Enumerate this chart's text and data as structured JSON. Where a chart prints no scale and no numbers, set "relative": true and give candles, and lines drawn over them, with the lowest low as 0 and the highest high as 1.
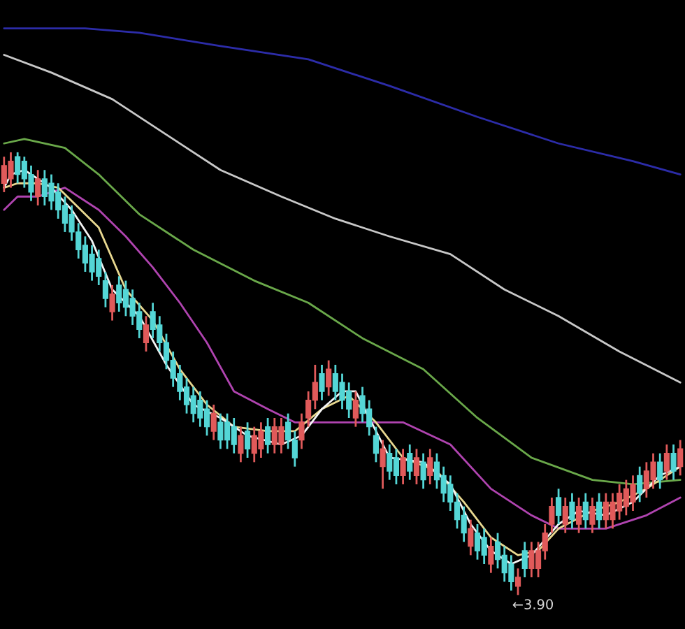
{
  "chart_data": {
    "type": "candlestick",
    "relative": true,
    "categories": [
      null,
      null,
      null,
      null,
      null,
      null,
      null,
      null,
      null,
      null,
      null,
      null,
      null,
      null,
      null,
      null,
      null,
      null,
      null,
      null,
      null,
      null,
      null,
      null,
      null,
      null,
      null,
      null,
      null,
      null,
      null,
      null,
      null,
      null,
      null,
      null,
      null,
      null,
      null,
      null,
      null,
      null,
      null,
      null,
      null,
      null,
      null,
      null,
      null,
      null,
      null,
      null,
      null,
      null,
      null,
      null,
      null,
      null,
      null,
      null,
      null,
      null,
      null,
      null,
      null,
      null,
      null,
      null,
      null,
      null,
      null,
      null,
      null,
      null,
      null,
      null,
      null,
      null,
      null,
      null,
      null,
      null,
      null,
      null,
      null,
      null,
      null,
      null,
      null,
      null,
      null,
      null,
      null,
      null,
      null,
      null,
      null,
      null,
      null,
      null,
      null
    ],
    "ohlc": [
      [
        0.93,
        0.99,
        0.91,
        0.97
      ],
      [
        0.94,
        1.0,
        0.92,
        0.98
      ],
      [
        0.99,
        1.0,
        0.93,
        0.95
      ],
      [
        0.98,
        0.99,
        0.92,
        0.94
      ],
      [
        0.95,
        0.97,
        0.89,
        0.91
      ],
      [
        0.9,
        0.96,
        0.88,
        0.94
      ],
      [
        0.94,
        0.96,
        0.88,
        0.9
      ],
      [
        0.93,
        0.95,
        0.87,
        0.89
      ],
      [
        0.91,
        0.93,
        0.85,
        0.87
      ],
      [
        0.88,
        0.9,
        0.82,
        0.84
      ],
      [
        0.86,
        0.88,
        0.8,
        0.82
      ],
      [
        0.82,
        0.84,
        0.76,
        0.78
      ],
      [
        0.79,
        0.81,
        0.73,
        0.75
      ],
      [
        0.77,
        0.79,
        0.71,
        0.73
      ],
      [
        0.76,
        0.78,
        0.7,
        0.72
      ],
      [
        0.71,
        0.73,
        0.65,
        0.67
      ],
      [
        0.64,
        0.7,
        0.62,
        0.68
      ],
      [
        0.7,
        0.72,
        0.64,
        0.66
      ],
      [
        0.69,
        0.71,
        0.63,
        0.65
      ],
      [
        0.67,
        0.69,
        0.61,
        0.63
      ],
      [
        0.64,
        0.66,
        0.58,
        0.6
      ],
      [
        0.57,
        0.63,
        0.55,
        0.61
      ],
      [
        0.64,
        0.66,
        0.58,
        0.6
      ],
      [
        0.61,
        0.63,
        0.55,
        0.57
      ],
      [
        0.57,
        0.59,
        0.51,
        0.53
      ],
      [
        0.53,
        0.55,
        0.47,
        0.49
      ],
      [
        0.5,
        0.52,
        0.44,
        0.46
      ],
      [
        0.47,
        0.49,
        0.41,
        0.43
      ],
      [
        0.45,
        0.47,
        0.39,
        0.41
      ],
      [
        0.44,
        0.46,
        0.38,
        0.4
      ],
      [
        0.42,
        0.44,
        0.36,
        0.38
      ],
      [
        0.37,
        0.43,
        0.35,
        0.41
      ],
      [
        0.39,
        0.41,
        0.33,
        0.35
      ],
      [
        0.39,
        0.41,
        0.33,
        0.35
      ],
      [
        0.38,
        0.4,
        0.32,
        0.34
      ],
      [
        0.32,
        0.38,
        0.3,
        0.36
      ],
      [
        0.37,
        0.39,
        0.31,
        0.33
      ],
      [
        0.32,
        0.38,
        0.3,
        0.36
      ],
      [
        0.33,
        0.39,
        0.31,
        0.37
      ],
      [
        0.38,
        0.4,
        0.32,
        0.34
      ],
      [
        0.34,
        0.4,
        0.32,
        0.38
      ],
      [
        0.34,
        0.4,
        0.32,
        0.38
      ],
      [
        0.39,
        0.41,
        0.33,
        0.35
      ],
      [
        0.35,
        0.37,
        0.29,
        0.31
      ],
      [
        0.35,
        0.41,
        0.33,
        0.39
      ],
      [
        0.4,
        0.46,
        0.38,
        0.44
      ],
      [
        0.44,
        0.52,
        0.42,
        0.48
      ],
      [
        0.5,
        0.52,
        0.44,
        0.46
      ],
      [
        0.47,
        0.53,
        0.45,
        0.51
      ],
      [
        0.5,
        0.52,
        0.44,
        0.46
      ],
      [
        0.48,
        0.5,
        0.42,
        0.44
      ],
      [
        0.46,
        0.48,
        0.4,
        0.42
      ],
      [
        0.4,
        0.46,
        0.38,
        0.44
      ],
      [
        0.45,
        0.47,
        0.39,
        0.41
      ],
      [
        0.42,
        0.44,
        0.36,
        0.38
      ],
      [
        0.36,
        0.38,
        0.3,
        0.32
      ],
      [
        0.29,
        0.35,
        0.24,
        0.33
      ],
      [
        0.32,
        0.34,
        0.26,
        0.28
      ],
      [
        0.31,
        0.33,
        0.25,
        0.27
      ],
      [
        0.27,
        0.33,
        0.25,
        0.31
      ],
      [
        0.32,
        0.34,
        0.26,
        0.28
      ],
      [
        0.27,
        0.33,
        0.25,
        0.31
      ],
      [
        0.3,
        0.32,
        0.24,
        0.26
      ],
      [
        0.27,
        0.33,
        0.25,
        0.31
      ],
      [
        0.3,
        0.32,
        0.24,
        0.26
      ],
      [
        0.27,
        0.29,
        0.21,
        0.23
      ],
      [
        0.25,
        0.27,
        0.19,
        0.21
      ],
      [
        0.21,
        0.23,
        0.15,
        0.17
      ],
      [
        0.18,
        0.2,
        0.12,
        0.14
      ],
      [
        0.11,
        0.17,
        0.09,
        0.15
      ],
      [
        0.14,
        0.16,
        0.08,
        0.1
      ],
      [
        0.13,
        0.15,
        0.07,
        0.09
      ],
      [
        0.07,
        0.13,
        0.05,
        0.11
      ],
      [
        0.12,
        0.14,
        0.06,
        0.08
      ],
      [
        0.09,
        0.11,
        0.03,
        0.05
      ],
      [
        0.07,
        0.09,
        0.01,
        0.03
      ],
      [
        0.02,
        0.06,
        0.0,
        0.04
      ],
      [
        0.1,
        0.12,
        0.04,
        0.06
      ],
      [
        0.06,
        0.12,
        0.04,
        0.1
      ],
      [
        0.06,
        0.12,
        0.04,
        0.1
      ],
      [
        0.1,
        0.16,
        0.08,
        0.14
      ],
      [
        0.16,
        0.22,
        0.14,
        0.2
      ],
      [
        0.22,
        0.24,
        0.16,
        0.18
      ],
      [
        0.16,
        0.22,
        0.14,
        0.2
      ],
      [
        0.21,
        0.23,
        0.15,
        0.17
      ],
      [
        0.16,
        0.22,
        0.14,
        0.2
      ],
      [
        0.21,
        0.23,
        0.15,
        0.17
      ],
      [
        0.16,
        0.22,
        0.14,
        0.2
      ],
      [
        0.21,
        0.23,
        0.15,
        0.17
      ],
      [
        0.17,
        0.23,
        0.15,
        0.21
      ],
      [
        0.17,
        0.23,
        0.15,
        0.21
      ],
      [
        0.19,
        0.25,
        0.17,
        0.23
      ],
      [
        0.2,
        0.26,
        0.18,
        0.24
      ],
      [
        0.21,
        0.27,
        0.19,
        0.25
      ],
      [
        0.27,
        0.29,
        0.21,
        0.23
      ],
      [
        0.24,
        0.3,
        0.22,
        0.28
      ],
      [
        0.26,
        0.32,
        0.24,
        0.3
      ],
      [
        0.3,
        0.32,
        0.24,
        0.26
      ],
      [
        0.28,
        0.34,
        0.26,
        0.32
      ],
      [
        0.32,
        0.34,
        0.26,
        0.28
      ],
      [
        0.29,
        0.35,
        0.27,
        0.33
      ]
    ],
    "colors": [
      "#e05a5a",
      "#e05a5a",
      "#54d6d6",
      "#54d6d6",
      "#54d6d6",
      "#e05a5a",
      "#54d6d6",
      "#54d6d6",
      "#54d6d6",
      "#54d6d6",
      "#54d6d6",
      "#54d6d6",
      "#54d6d6",
      "#54d6d6",
      "#54d6d6",
      "#54d6d6",
      "#e05a5a",
      "#54d6d6",
      "#54d6d6",
      "#54d6d6",
      "#54d6d6",
      "#e05a5a",
      "#54d6d6",
      "#54d6d6",
      "#54d6d6",
      "#54d6d6",
      "#54d6d6",
      "#54d6d6",
      "#54d6d6",
      "#54d6d6",
      "#54d6d6",
      "#e05a5a",
      "#54d6d6",
      "#54d6d6",
      "#54d6d6",
      "#e05a5a",
      "#54d6d6",
      "#e05a5a",
      "#e05a5a",
      "#54d6d6",
      "#e05a5a",
      "#e05a5a",
      "#54d6d6",
      "#54d6d6",
      "#e05a5a",
      "#e05a5a",
      "#e05a5a",
      "#54d6d6",
      "#e05a5a",
      "#54d6d6",
      "#54d6d6",
      "#54d6d6",
      "#e05a5a",
      "#54d6d6",
      "#54d6d6",
      "#54d6d6",
      "#e05a5a",
      "#54d6d6",
      "#54d6d6",
      "#e05a5a",
      "#54d6d6",
      "#e05a5a",
      "#54d6d6",
      "#e05a5a",
      "#54d6d6",
      "#54d6d6",
      "#54d6d6",
      "#54d6d6",
      "#54d6d6",
      "#e05a5a",
      "#54d6d6",
      "#54d6d6",
      "#e05a5a",
      "#54d6d6",
      "#54d6d6",
      "#54d6d6",
      "#e05a5a",
      "#54d6d6",
      "#e05a5a",
      "#e05a5a",
      "#e05a5a",
      "#e05a5a",
      "#54d6d6",
      "#e05a5a",
      "#54d6d6",
      "#e05a5a",
      "#54d6d6",
      "#e05a5a",
      "#54d6d6",
      "#e05a5a",
      "#e05a5a",
      "#e05a5a",
      "#e05a5a",
      "#e05a5a",
      "#54d6d6",
      "#e05a5a",
      "#e05a5a",
      "#54d6d6",
      "#e05a5a",
      "#54d6d6",
      "#e05a5a"
    ],
    "series": [
      {
        "type": "line",
        "color": "#2c2ca8",
        "values": [
          1.28,
          null,
          null,
          null,
          null,
          null,
          null,
          null,
          null,
          null,
          null,
          null,
          1.28,
          null,
          null,
          null,
          null,
          null,
          null,
          null,
          1.27,
          null,
          null,
          null,
          null,
          null,
          null,
          null,
          null,
          null,
          null,
          null,
          1.24,
          null,
          null,
          null,
          null,
          null,
          null,
          null,
          null,
          null,
          null,
          null,
          null,
          1.21,
          null,
          null,
          null,
          null,
          null,
          null,
          null,
          null,
          null,
          null,
          null,
          1.15,
          null,
          null,
          null,
          null,
          null,
          null,
          null,
          null,
          null,
          null,
          null,
          null,
          1.08,
          null,
          null,
          null,
          null,
          null,
          null,
          null,
          null,
          null,
          null,
          null,
          1.02,
          null,
          null,
          null,
          null,
          null,
          null,
          null,
          null,
          null,
          null,
          0.98,
          null,
          null,
          null,
          null,
          null,
          null,
          0.95
        ]
      },
      {
        "type": "line",
        "color": "#c8c8c8",
        "values": [
          1.22,
          null,
          null,
          null,
          null,
          null,
          null,
          1.18,
          null,
          null,
          null,
          null,
          null,
          null,
          null,
          null,
          1.12,
          null,
          null,
          null,
          null,
          null,
          null,
          null,
          1.04,
          null,
          null,
          null,
          null,
          null,
          null,
          null,
          0.96,
          null,
          null,
          null,
          null,
          null,
          null,
          null,
          null,
          0.9,
          null,
          null,
          null,
          null,
          null,
          null,
          null,
          0.85,
          null,
          null,
          null,
          null,
          null,
          null,
          null,
          0.81,
          null,
          null,
          null,
          null,
          null,
          null,
          null,
          null,
          0.77,
          null,
          null,
          null,
          null,
          null,
          null,
          null,
          0.69,
          null,
          null,
          null,
          null,
          null,
          null,
          null,
          0.63,
          null,
          null,
          null,
          null,
          null,
          null,
          null,
          null,
          0.55,
          null,
          null,
          null,
          null,
          null,
          null,
          null,
          null,
          0.48
        ]
      },
      {
        "type": "line",
        "color": "#6aa84a",
        "values": [
          1.02,
          null,
          null,
          1.03,
          null,
          null,
          null,
          null,
          null,
          1.01,
          null,
          null,
          null,
          null,
          0.95,
          null,
          null,
          null,
          null,
          null,
          0.86,
          null,
          null,
          null,
          null,
          null,
          null,
          null,
          0.78,
          null,
          null,
          null,
          null,
          null,
          null,
          null,
          null,
          0.71,
          null,
          null,
          null,
          null,
          null,
          null,
          null,
          0.66,
          null,
          null,
          null,
          null,
          null,
          null,
          null,
          0.58,
          null,
          null,
          null,
          null,
          null,
          null,
          null,
          null,
          0.51,
          null,
          null,
          null,
          null,
          null,
          null,
          null,
          0.4,
          null,
          null,
          null,
          null,
          null,
          null,
          null,
          0.31,
          null,
          null,
          null,
          null,
          null,
          null,
          null,
          null,
          0.26,
          null,
          null,
          null,
          null,
          null,
          0.25,
          null,
          null,
          null,
          null,
          null,
          null,
          0.26
        ]
      },
      {
        "type": "line",
        "color": "#b044b0",
        "values": [
          0.87,
          null,
          0.9,
          null,
          null,
          0.9,
          null,
          null,
          null,
          0.92,
          null,
          null,
          null,
          null,
          0.87,
          null,
          null,
          null,
          0.81,
          null,
          null,
          null,
          0.74,
          null,
          null,
          null,
          0.66,
          null,
          null,
          null,
          0.57,
          null,
          null,
          null,
          0.46,
          null,
          null,
          null,
          null,
          0.42,
          null,
          null,
          null,
          0.39,
          null,
          null,
          null,
          0.39,
          null,
          null,
          null,
          null,
          null,
          0.39,
          null,
          null,
          null,
          null,
          null,
          0.39,
          null,
          null,
          null,
          null,
          null,
          null,
          0.34,
          null,
          null,
          null,
          null,
          null,
          0.24,
          null,
          null,
          null,
          null,
          null,
          0.18,
          null,
          null,
          null,
          0.15,
          null,
          null,
          null,
          null,
          null,
          null,
          0.15,
          null,
          null,
          null,
          null,
          null,
          0.18,
          null,
          null,
          null,
          null,
          0.22
        ]
      },
      {
        "type": "line",
        "color": "#e8d890",
        "values": [
          0.92,
          null,
          0.93,
          null,
          null,
          0.93,
          null,
          null,
          0.92,
          null,
          0.89,
          null,
          null,
          null,
          0.83,
          null,
          null,
          null,
          0.69,
          null,
          null,
          null,
          0.62,
          null,
          null,
          null,
          0.51,
          null,
          null,
          null,
          0.43,
          null,
          null,
          null,
          0.38,
          null,
          null,
          null,
          null,
          0.37,
          null,
          null,
          null,
          0.37,
          null,
          null,
          null,
          0.42,
          null,
          null,
          null,
          0.45,
          null,
          null,
          null,
          0.39,
          null,
          null,
          null,
          0.31,
          null,
          null,
          null,
          null,
          0.28,
          null,
          null,
          null,
          0.21,
          null,
          null,
          null,
          0.13,
          null,
          null,
          null,
          0.09,
          null,
          null,
          0.1,
          null,
          null,
          0.15,
          null,
          null,
          null,
          null,
          0.19,
          null,
          null,
          null,
          0.21,
          null,
          null,
          null,
          0.24,
          null,
          null,
          null,
          null,
          0.29
        ]
      },
      {
        "type": "line",
        "color": "#f4f4f4",
        "values": [
          0.92,
          0.95,
          null,
          0.96,
          null,
          0.94,
          null,
          0.92,
          null,
          null,
          0.87,
          null,
          null,
          0.8,
          null,
          null,
          0.69,
          null,
          null,
          null,
          0.63,
          null,
          null,
          null,
          0.52,
          null,
          null,
          null,
          0.43,
          null,
          null,
          null,
          0.4,
          null,
          null,
          null,
          0.36,
          null,
          null,
          null,
          null,
          0.34,
          null,
          null,
          0.36,
          null,
          null,
          0.42,
          null,
          null,
          0.46,
          null,
          0.46,
          null,
          0.4,
          null,
          null,
          0.31,
          null,
          null,
          null,
          null,
          0.3,
          null,
          null,
          null,
          0.25,
          null,
          null,
          0.16,
          null,
          null,
          0.1,
          null,
          null,
          0.07,
          null,
          null,
          0.09,
          null,
          null,
          null,
          0.16,
          null,
          null,
          0.19,
          null,
          null,
          null,
          0.18,
          null,
          null,
          null,
          0.21,
          null,
          null,
          null,
          0.27,
          null,
          null,
          0.29
        ]
      }
    ],
    "annotations": [
      "←3.90"
    ]
  }
}
